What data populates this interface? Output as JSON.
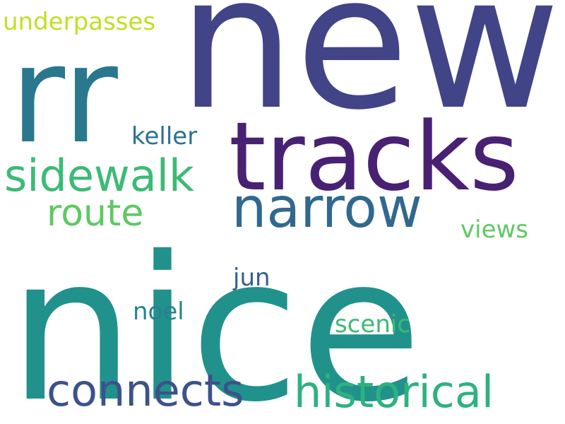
{
  "background": "#ffffff",
  "words": [
    {
      "key": "nice",
      "text": "nice",
      "color": "#21918c"
    },
    {
      "key": "new",
      "text": "new",
      "color": "#414487"
    },
    {
      "key": "rr",
      "text": "rr",
      "color": "#2a788e"
    },
    {
      "key": "tracks",
      "text": "tracks",
      "color": "#482173"
    },
    {
      "key": "narrow",
      "text": "narrow",
      "color": "#31688e"
    },
    {
      "key": "historical",
      "text": "historical",
      "color": "#2db27d"
    },
    {
      "key": "connects",
      "text": "connects",
      "color": "#3b528b"
    },
    {
      "key": "sidewalk",
      "text": "sidewalk",
      "color": "#3bbb75"
    },
    {
      "key": "route",
      "text": "route",
      "color": "#5ec962"
    },
    {
      "key": "keller",
      "text": "keller",
      "color": "#2c718e"
    },
    {
      "key": "views",
      "text": "views",
      "color": "#5ec962"
    },
    {
      "key": "jun",
      "text": "jun",
      "color": "#355f8d"
    },
    {
      "key": "noel",
      "text": "noel",
      "color": "#26828e"
    },
    {
      "key": "scenic",
      "text": "scenic",
      "color": "#3bbb75"
    },
    {
      "key": "underpasses",
      "text": "underpasses",
      "color": "#c2df23"
    }
  ]
}
